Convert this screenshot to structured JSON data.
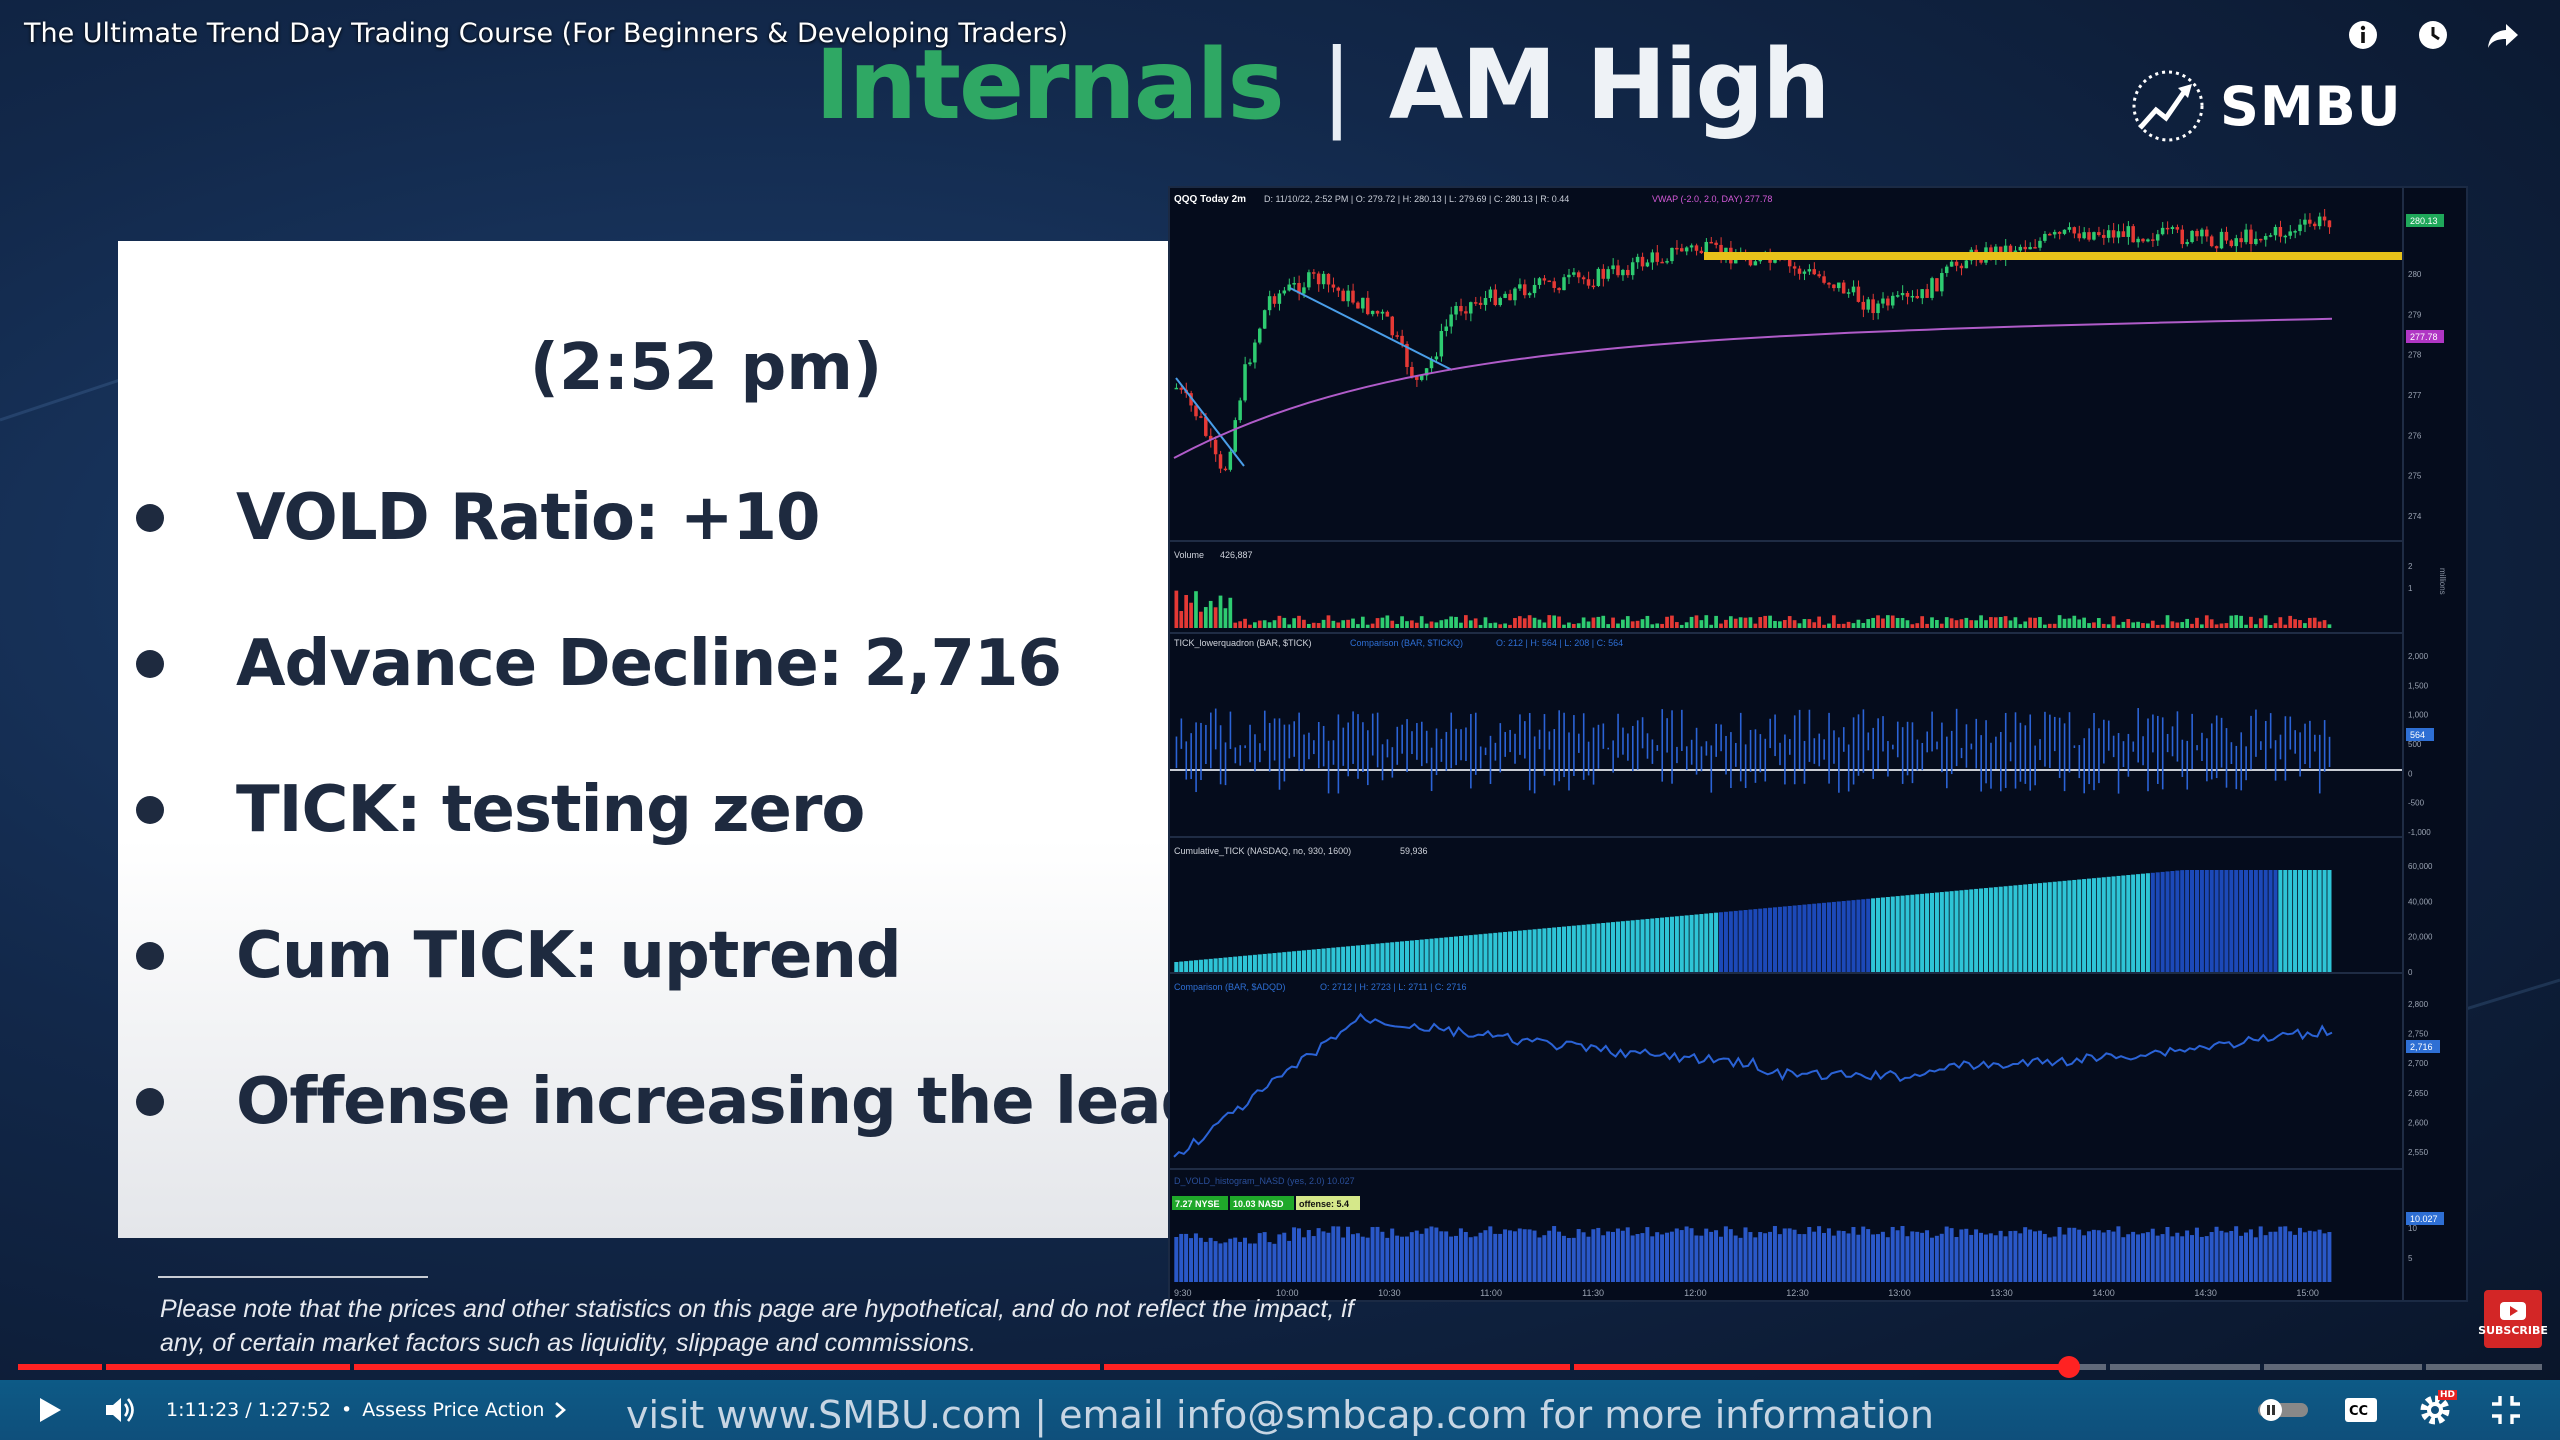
{
  "video": {
    "title": "The Ultimate Trend Day Trading Course (For Beginners & Developing Traders)"
  },
  "slide": {
    "heading_left": "Internals",
    "heading_sep": "|",
    "heading_right": "AM High",
    "logo_text": "SMBU",
    "time": "(2:52 pm)",
    "bullets": [
      "VOLD Ratio: +10",
      "Advance Decline: 2,716",
      "TICK: testing zero",
      "Cum TICK: uptrend",
      "Offense increasing the lead"
    ],
    "disclaimer": "Please note that the prices and other statistics on this page are hypothetical, and do not reflect the impact, if any, of certain market factors such as liquidity, slippage and commissions.",
    "footer": "visit www.SMBU.com | email info@smbcap.com for more information"
  },
  "chart": {
    "header": "QQQ Today 2m",
    "header_stats": "D: 11/10/22, 2:52 PM | O: 279.72 | H: 280.13 | L: 279.69 | C: 280.13 | R: 0.44",
    "vwap_label": "VWAP (-2.0, 2.0, DAY) 277.78",
    "price_ticks": [
      "280",
      "279",
      "278",
      "277",
      "276",
      "275",
      "274"
    ],
    "price_tag": "280.13",
    "vwap_tag": "277.78",
    "volume_label": "Volume",
    "volume_value": "426,887",
    "volume_ticks": [
      "2",
      "1"
    ],
    "volume_units": "millions",
    "tick_label": "TICK_lowerquadron (BAR, $TICK)",
    "tick_comp": "Comparison (BAR, $TICKQ)",
    "tick_stats": "O: 212 | H: 564 | L: 208 | C: 564",
    "tick_ticks": [
      "2,000",
      "1,500",
      "1,000",
      "500",
      "0",
      "-500",
      "-1,000"
    ],
    "tick_tag": "564",
    "cum_label": "Cumulative_TICK (NASDAQ, no, 930, 1600)",
    "cum_value": "59,936",
    "cum_ticks": [
      "60,000",
      "40,000",
      "20,000",
      "0"
    ],
    "ad_label": "Comparison (BAR, $ADQD)",
    "ad_stats": "O: 2712 | H: 2723 | L: 2711 | C: 2716",
    "ad_ticks": [
      "2,800",
      "2,750",
      "2,700",
      "2,650",
      "2,600",
      "2,550"
    ],
    "ad_tag": "2,716",
    "vold_label": "D_VOLD_histogram_NASD (yes, 2.0) 10.027",
    "vold_nyse": "7.27 NYSE",
    "vold_nasd": "10.03 NASD",
    "vold_offense": "offense: 5.4",
    "vold_ticks": [
      "10",
      "5"
    ],
    "vold_tag": "10.027",
    "time_ticks": [
      "9:30",
      "10:00",
      "10:30",
      "11:00",
      "11:30",
      "12:00",
      "12:30",
      "13:00",
      "13:30",
      "14:00",
      "14:30",
      "15:00"
    ]
  },
  "player": {
    "time": "1:11:23 / 1:27:52",
    "separator": "•",
    "chapter": "Assess Price Action",
    "progress": 0.8125,
    "subscribe_label": "SUBSCRIBE",
    "hd_badge": "HD"
  },
  "colors": {
    "progress": "#ff2222",
    "heading_green": "#2fa864",
    "resistance": "#e8c21a",
    "candle_up": "#2ecc71",
    "candle_down": "#e53935",
    "vwap": "#b05cc9"
  }
}
